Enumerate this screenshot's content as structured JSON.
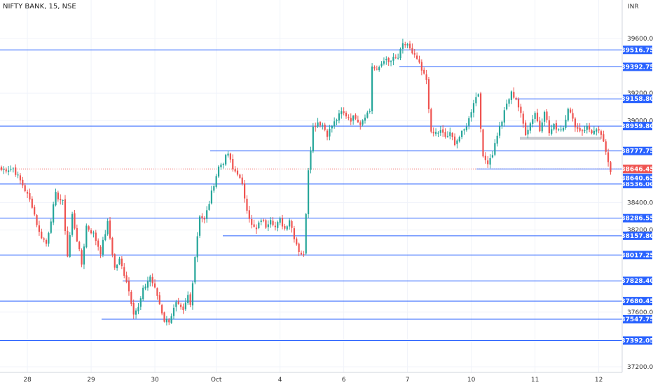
{
  "header": {
    "symbol": "NIFTY BANK, 15, NSE",
    "currency": "INR"
  },
  "colors": {
    "up": "#26a69a",
    "down": "#ef5350",
    "level": "#2962ff",
    "price_tag": "#ef5350",
    "grid": "#f0f3fa",
    "axis_text": "#333333",
    "zone": "#b2b5be"
  },
  "chart_data": {
    "type": "candlestick",
    "ylim": [
      37200,
      39850
    ],
    "y_ticks": [
      "39600.00",
      "39200.00",
      "39000.00",
      "38400.00",
      "38200.00",
      "37600.00",
      "37200.00"
    ],
    "x_ticks": [
      "28",
      "29",
      "30",
      "Oct",
      "4",
      "6",
      "7",
      "10",
      "11",
      "12"
    ],
    "levels": [
      39516.75,
      39392.75,
      39158.8,
      38959.8,
      38777.75,
      38536.0,
      38286.55,
      38157.8,
      38017.25,
      37828.4,
      37680.45,
      37547.75,
      37392.05
    ],
    "level_labels": [
      "39516.75",
      "39392.75",
      "39158.80",
      "38959.80",
      "38777.75",
      "38536.00",
      "38286.55",
      "38157.80",
      "38017.25",
      "37828.40",
      "37680.45",
      "37547.75",
      "37392.05"
    ],
    "current_price": 38646.45,
    "current_price_label": "38646.45",
    "last_close_label": "38640.65",
    "keypoints": [
      [
        0,
        38640
      ],
      [
        5,
        38650
      ],
      [
        9,
        38530
      ],
      [
        13,
        38380
      ],
      [
        16,
        38180
      ],
      [
        19,
        38100
      ],
      [
        23,
        38460
      ],
      [
        26,
        38400
      ],
      [
        28,
        38010
      ],
      [
        30,
        38310
      ],
      [
        34,
        37950
      ],
      [
        36,
        38230
      ],
      [
        39,
        38170
      ],
      [
        42,
        38040
      ],
      [
        45,
        38250
      ],
      [
        48,
        37920
      ],
      [
        50,
        37980
      ],
      [
        53,
        37830
      ],
      [
        56,
        37600
      ],
      [
        58,
        37630
      ],
      [
        60,
        37760
      ],
      [
        63,
        37860
      ],
      [
        66,
        37720
      ],
      [
        69,
        37540
      ],
      [
        71,
        37540
      ],
      [
        74,
        37660
      ],
      [
        77,
        37600
      ],
      [
        79,
        37720
      ],
      [
        80,
        37650
      ],
      [
        82,
        38010
      ],
      [
        84,
        38310
      ],
      [
        86,
        38270
      ],
      [
        88,
        38400
      ],
      [
        90,
        38540
      ],
      [
        92,
        38660
      ],
      [
        94,
        38700
      ],
      [
        96,
        38760
      ],
      [
        98,
        38640
      ],
      [
        100,
        38620
      ],
      [
        102,
        38520
      ],
      [
        104,
        38360
      ],
      [
        106,
        38230
      ],
      [
        108,
        38200
      ],
      [
        110,
        38280
      ],
      [
        112,
        38230
      ],
      [
        114,
        38290
      ],
      [
        116,
        38220
      ],
      [
        118,
        38270
      ],
      [
        120,
        38210
      ],
      [
        122,
        38280
      ],
      [
        124,
        38150
      ],
      [
        126,
        38050
      ],
      [
        128,
        38010
      ],
      [
        130,
        38650
      ],
      [
        132,
        38950
      ],
      [
        134,
        38990
      ],
      [
        136,
        38970
      ],
      [
        138,
        38900
      ],
      [
        140,
        38960
      ],
      [
        142,
        39010
      ],
      [
        144,
        39060
      ],
      [
        146,
        39040
      ],
      [
        148,
        39010
      ],
      [
        150,
        39030
      ],
      [
        152,
        38980
      ],
      [
        154,
        39040
      ],
      [
        156,
        39070
      ],
      [
        157,
        39400
      ],
      [
        159,
        39360
      ],
      [
        162,
        39450
      ],
      [
        164,
        39420
      ],
      [
        166,
        39450
      ],
      [
        168,
        39460
      ],
      [
        170,
        39550
      ],
      [
        172,
        39560
      ],
      [
        174,
        39480
      ],
      [
        176,
        39450
      ],
      [
        178,
        39360
      ],
      [
        180,
        39300
      ],
      [
        182,
        38900
      ],
      [
        184,
        38910
      ],
      [
        186,
        38920
      ],
      [
        188,
        38880
      ],
      [
        190,
        38900
      ],
      [
        192,
        38840
      ],
      [
        194,
        38880
      ],
      [
        196,
        38930
      ],
      [
        198,
        39010
      ],
      [
        200,
        39140
      ],
      [
        202,
        39200
      ],
      [
        204,
        38720
      ],
      [
        206,
        38700
      ],
      [
        208,
        38760
      ],
      [
        210,
        38900
      ],
      [
        212,
        39000
      ],
      [
        214,
        39120
      ],
      [
        216,
        39200
      ],
      [
        218,
        39160
      ],
      [
        220,
        39040
      ],
      [
        222,
        38910
      ],
      [
        224,
        38980
      ],
      [
        226,
        39060
      ],
      [
        228,
        38930
      ],
      [
        230,
        39080
      ],
      [
        232,
        38910
      ],
      [
        234,
        38960
      ],
      [
        236,
        38940
      ],
      [
        238,
        38950
      ],
      [
        240,
        39100
      ],
      [
        242,
        39000
      ],
      [
        244,
        38940
      ],
      [
        246,
        38930
      ],
      [
        248,
        38950
      ],
      [
        250,
        38920
      ],
      [
        252,
        38920
      ],
      [
        254,
        38900
      ],
      [
        256,
        38760
      ],
      [
        258,
        38640
      ]
    ]
  }
}
